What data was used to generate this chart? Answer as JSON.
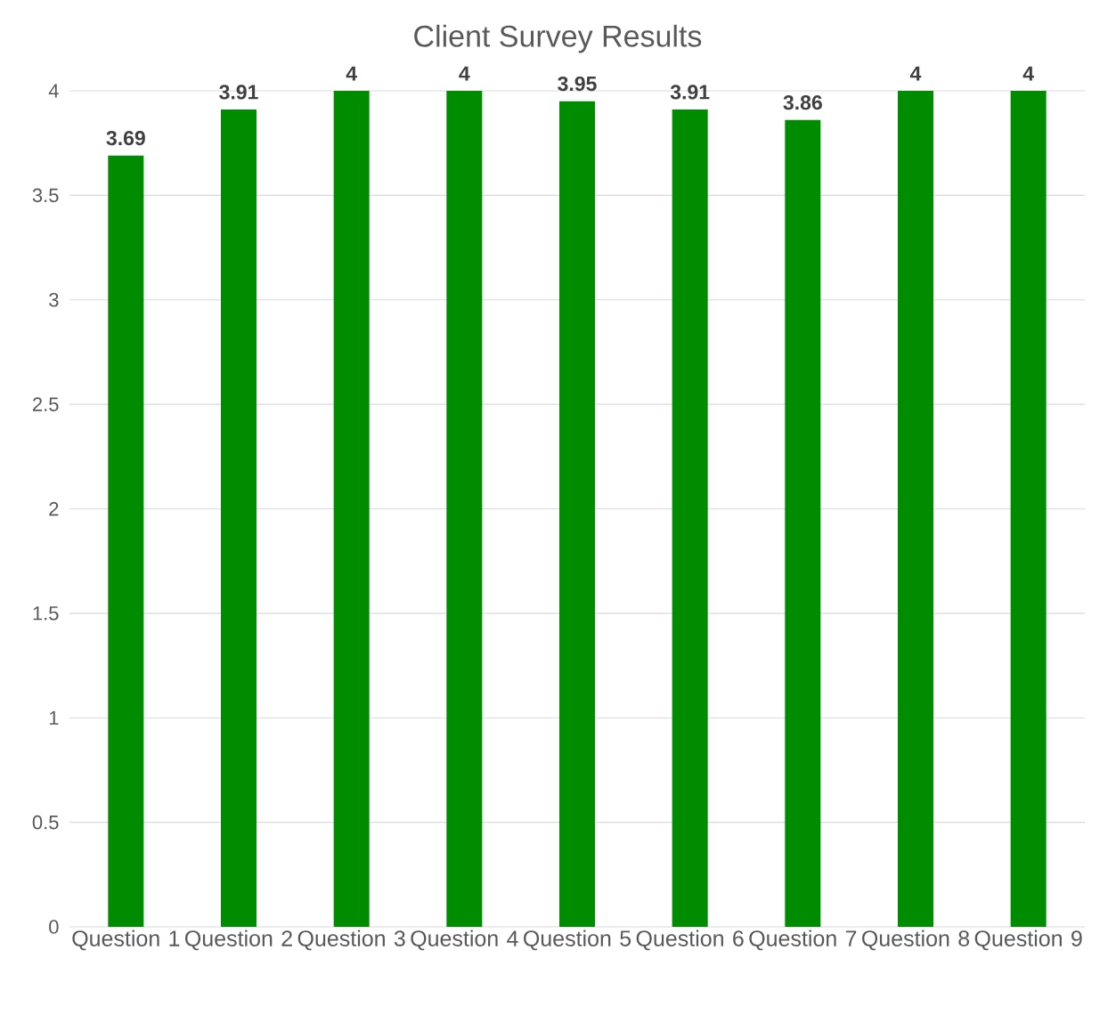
{
  "chart_data": {
    "type": "bar",
    "title": "Client Survey Results",
    "categories": [
      "Question 1",
      "Question 2",
      "Question 3",
      "Question 4",
      "Question 5",
      "Question 6",
      "Question 7",
      "Question 8",
      "Question 9"
    ],
    "values": [
      3.69,
      3.91,
      4,
      4,
      3.95,
      3.91,
      3.86,
      4,
      4
    ],
    "color": "#008c00",
    "ylim": [
      0,
      4
    ],
    "yticks": [
      0,
      0.5,
      1,
      1.5,
      2,
      2.5,
      3,
      3.5,
      4
    ],
    "grid": "y",
    "data_labels": true
  }
}
